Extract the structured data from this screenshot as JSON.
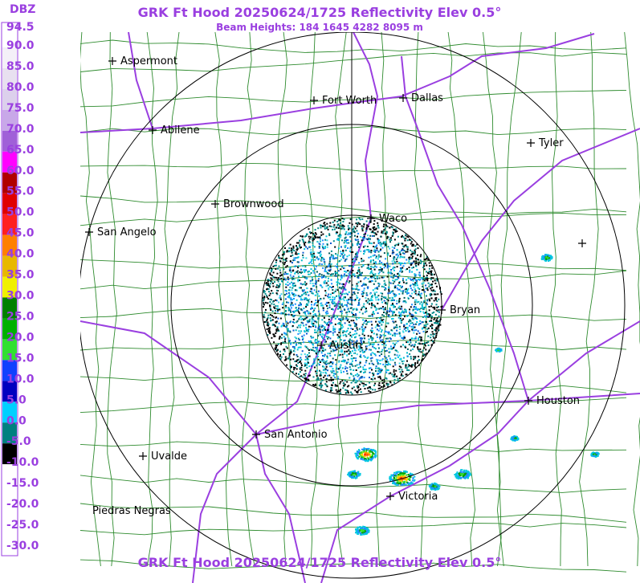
{
  "header": {
    "title": "GRK Ft Hood 20250624/1725 Reflectivity Elev 0.5°",
    "subtitle": "Beam Heights: 184 1645 4282 8095 m"
  },
  "legend": {
    "unit": "DBZ",
    "labels": [
      "94.5",
      "90.0",
      "85.0",
      "80.0",
      "75.0",
      "70.0",
      "65.0",
      "60.0",
      "55.0",
      "50.0",
      "45.0",
      "40.0",
      "35.0",
      "30.0",
      "25.0",
      "20.0",
      "15.0",
      "10.0",
      "5.0",
      "0.0",
      "-5.0",
      "-10.0",
      "-15.0",
      "-20.0",
      "-25.0",
      "-30.0"
    ]
  },
  "cities": [
    "Aspermont",
    "Abilene",
    "Fort Worth",
    "Dallas",
    "Tyler",
    "Brownwood",
    "Waco",
    "San Angelo",
    "Bryan",
    "Austin",
    "Houston",
    "San Antonio",
    "Uvalde",
    "Victoria",
    "Piedras Negras"
  ],
  "footer": {
    "title": "GRK Ft Hood 20250624/1725 Reflectivity Elev 0.5°"
  }
}
